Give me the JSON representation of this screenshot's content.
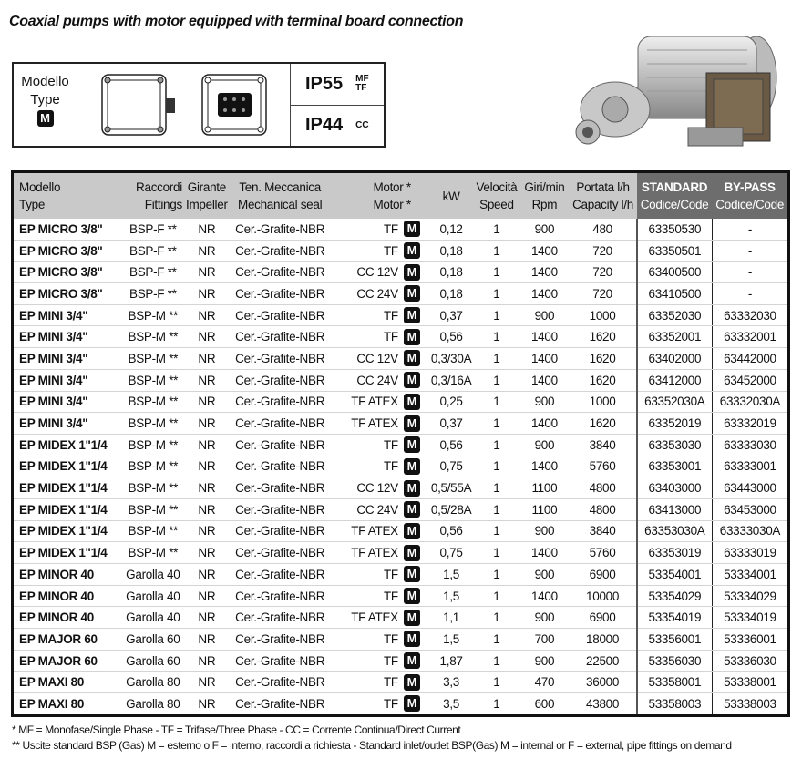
{
  "title": "Coaxial pumps with motor equipped with terminal board connection",
  "type_box": {
    "model_label": "Modello",
    "type_label": "Type",
    "badge": "M",
    "ip": [
      {
        "rating": "IP55",
        "sub": [
          "MF",
          "TF"
        ]
      },
      {
        "rating": "IP44",
        "sub": [
          "CC"
        ]
      }
    ]
  },
  "headers": {
    "model": [
      "Modello",
      "Type"
    ],
    "fittings": [
      "Raccordi",
      "Fittings"
    ],
    "impeller": [
      "Girante",
      "Impeller"
    ],
    "seal": [
      "Ten. Meccanica",
      "Mechanical seal"
    ],
    "motor": [
      "Motor *",
      "Motor *"
    ],
    "kw": "kW",
    "speed": [
      "Velocità",
      "Speed"
    ],
    "rpm": [
      "Giri/min",
      "Rpm"
    ],
    "capacity": [
      "Portata l/h",
      "Capacity l/h"
    ],
    "standard": [
      "STANDARD",
      "Codice/Code"
    ],
    "bypass": [
      "BY-PASS",
      "Codice/Code"
    ]
  },
  "rows": [
    [
      "EP MICRO 3/8\"",
      "BSP-F **",
      "NR",
      "Cer.-Grafite-NBR",
      "TF",
      "M",
      "0,12",
      "1",
      "900",
      "480",
      "63350530",
      "-"
    ],
    [
      "EP MICRO 3/8\"",
      "BSP-F **",
      "NR",
      "Cer.-Grafite-NBR",
      "TF",
      "M",
      "0,18",
      "1",
      "1400",
      "720",
      "63350501",
      "-"
    ],
    [
      "EP MICRO 3/8\"",
      "BSP-F **",
      "NR",
      "Cer.-Grafite-NBR",
      "CC 12V",
      "M",
      "0,18",
      "1",
      "1400",
      "720",
      "63400500",
      "-"
    ],
    [
      "EP MICRO 3/8\"",
      "BSP-F **",
      "NR",
      "Cer.-Grafite-NBR",
      "CC 24V",
      "M",
      "0,18",
      "1",
      "1400",
      "720",
      "63410500",
      "-"
    ],
    [
      "EP MINI 3/4\"",
      "BSP-M **",
      "NR",
      "Cer.-Grafite-NBR",
      "TF",
      "M",
      "0,37",
      "1",
      "900",
      "1000",
      "63352030",
      "63332030"
    ],
    [
      "EP MINI 3/4\"",
      "BSP-M **",
      "NR",
      "Cer.-Grafite-NBR",
      "TF",
      "M",
      "0,56",
      "1",
      "1400",
      "1620",
      "63352001",
      "63332001"
    ],
    [
      "EP MINI 3/4\"",
      "BSP-M **",
      "NR",
      "Cer.-Grafite-NBR",
      "CC 12V",
      "M",
      "0,3/30A",
      "1",
      "1400",
      "1620",
      "63402000",
      "63442000"
    ],
    [
      "EP MINI 3/4\"",
      "BSP-M **",
      "NR",
      "Cer.-Grafite-NBR",
      "CC 24V",
      "M",
      "0,3/16A",
      "1",
      "1400",
      "1620",
      "63412000",
      "63452000"
    ],
    [
      "EP MINI 3/4\"",
      "BSP-M **",
      "NR",
      "Cer.-Grafite-NBR",
      "TF ATEX",
      "M",
      "0,25",
      "1",
      "900",
      "1000",
      "63352030A",
      "63332030A"
    ],
    [
      "EP MINI 3/4\"",
      "BSP-M **",
      "NR",
      "Cer.-Grafite-NBR",
      "TF ATEX",
      "M",
      "0,37",
      "1",
      "1400",
      "1620",
      "63352019",
      "63332019"
    ],
    [
      "EP MIDEX 1\"1/4",
      "BSP-M **",
      "NR",
      "Cer.-Grafite-NBR",
      "TF",
      "M",
      "0,56",
      "1",
      "900",
      "3840",
      "63353030",
      "63333030"
    ],
    [
      "EP MIDEX 1\"1/4",
      "BSP-M **",
      "NR",
      "Cer.-Grafite-NBR",
      "TF",
      "M",
      "0,75",
      "1",
      "1400",
      "5760",
      "63353001",
      "63333001"
    ],
    [
      "EP MIDEX 1\"1/4",
      "BSP-M **",
      "NR",
      "Cer.-Grafite-NBR",
      "CC 12V",
      "M",
      "0,5/55A",
      "1",
      "1100",
      "4800",
      "63403000",
      "63443000"
    ],
    [
      "EP MIDEX 1\"1/4",
      "BSP-M **",
      "NR",
      "Cer.-Grafite-NBR",
      "CC 24V",
      "M",
      "0,5/28A",
      "1",
      "1100",
      "4800",
      "63413000",
      "63453000"
    ],
    [
      "EP MIDEX 1\"1/4",
      "BSP-M **",
      "NR",
      "Cer.-Grafite-NBR",
      "TF ATEX",
      "M",
      "0,56",
      "1",
      "900",
      "3840",
      "63353030A",
      "63333030A"
    ],
    [
      "EP MIDEX 1\"1/4",
      "BSP-M **",
      "NR",
      "Cer.-Grafite-NBR",
      "TF ATEX",
      "M",
      "0,75",
      "1",
      "1400",
      "5760",
      "63353019",
      "63333019"
    ],
    [
      "EP MINOR 40",
      "Garolla 40",
      "NR",
      "Cer.-Grafite-NBR",
      "TF",
      "M",
      "1,5",
      "1",
      "900",
      "6900",
      "53354001",
      "53334001"
    ],
    [
      "EP MINOR 40",
      "Garolla 40",
      "NR",
      "Cer.-Grafite-NBR",
      "TF",
      "M",
      "1,5",
      "1",
      "1400",
      "10000",
      "53354029",
      "53334029"
    ],
    [
      "EP MINOR 40",
      "Garolla 40",
      "NR",
      "Cer.-Grafite-NBR",
      "TF ATEX",
      "M",
      "1,1",
      "1",
      "900",
      "6900",
      "53354019",
      "53334019"
    ],
    [
      "EP MAJOR 60",
      "Garolla 60",
      "NR",
      "Cer.-Grafite-NBR",
      "TF",
      "M",
      "1,5",
      "1",
      "700",
      "18000",
      "53356001",
      "53336001"
    ],
    [
      "EP MAJOR 60",
      "Garolla 60",
      "NR",
      "Cer.-Grafite-NBR",
      "TF",
      "M",
      "1,87",
      "1",
      "900",
      "22500",
      "53356030",
      "53336030"
    ],
    [
      "EP MAXI 80",
      "Garolla 80",
      "NR",
      "Cer.-Grafite-NBR",
      "TF",
      "M",
      "3,3",
      "1",
      "470",
      "36000",
      "53358001",
      "53338001"
    ],
    [
      "EP MAXI 80",
      "Garolla 80",
      "NR",
      "Cer.-Grafite-NBR",
      "TF",
      "M",
      "3,5",
      "1",
      "600",
      "43800",
      "53358003",
      "53338003"
    ]
  ],
  "notes": [
    "* MF = Monofase/Single Phase - TF = Trifase/Three Phase - CC = Corrente Continua/Direct Current",
    "** Uscite standard BSP (Gas) M = esterno o F = interno, raccordi a richiesta - Standard inlet/outlet BSP(Gas) M = internal or F = external, pipe fittings on demand"
  ]
}
